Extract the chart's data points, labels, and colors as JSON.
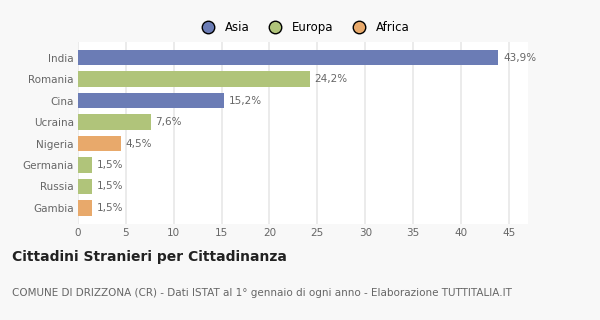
{
  "categories": [
    "India",
    "Romania",
    "Cina",
    "Ucraina",
    "Nigeria",
    "Germania",
    "Russia",
    "Gambia"
  ],
  "values": [
    43.9,
    24.2,
    15.2,
    7.6,
    4.5,
    1.5,
    1.5,
    1.5
  ],
  "labels": [
    "43,9%",
    "24,2%",
    "15,2%",
    "7,6%",
    "4,5%",
    "1,5%",
    "1,5%",
    "1,5%"
  ],
  "colors": [
    "#6b7cb5",
    "#b0c47a",
    "#6b7cb5",
    "#b0c47a",
    "#e8a96b",
    "#b0c47a",
    "#b0c47a",
    "#e8a96b"
  ],
  "legend_labels": [
    "Asia",
    "Europa",
    "Africa"
  ],
  "legend_colors": [
    "#6b7cb5",
    "#b0c47a",
    "#e8a96b"
  ],
  "xlim": [
    0,
    47
  ],
  "xticks": [
    0,
    5,
    10,
    15,
    20,
    25,
    30,
    35,
    40,
    45
  ],
  "title": "Cittadini Stranieri per Cittadinanza",
  "subtitle": "COMUNE DI DRIZZONA (CR) - Dati ISTAT al 1° gennaio di ogni anno - Elaborazione TUTTITALIA.IT",
  "fig_bg_color": "#f8f8f8",
  "plot_bg_color": "#ffffff",
  "grid_color": "#e8e8e8",
  "label_color": "#666666",
  "title_fontsize": 10,
  "subtitle_fontsize": 7.5,
  "label_fontsize": 7.5,
  "tick_fontsize": 7.5,
  "legend_fontsize": 8.5
}
